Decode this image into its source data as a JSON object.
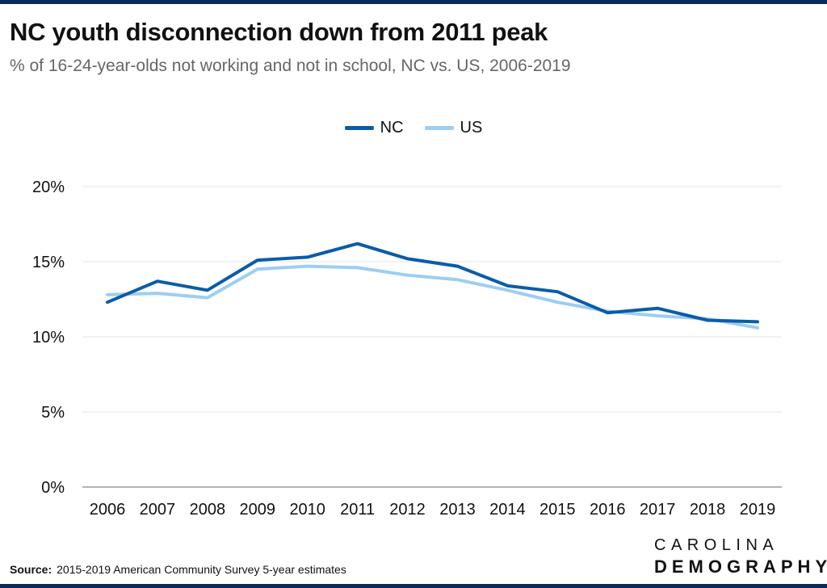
{
  "header": {
    "title": "NC youth disconnection down from 2011 peak",
    "subtitle": "% of 16-24-year-olds not working and not in school, NC vs. US, 2006-2019"
  },
  "source": {
    "label": "Source:",
    "text": "2015-2019 American Community Survey 5-year estimates"
  },
  "logo": {
    "line1": "CAROLINA",
    "line2": "DEMOGRAPHY"
  },
  "chart_data": {
    "type": "line",
    "title": "NC youth disconnection down from 2011 peak",
    "subtitle": "% of 16-24-year-olds not working and not in school, NC vs. US, 2006-2019",
    "xlabel": "",
    "ylabel": "",
    "x": [
      "2006",
      "2007",
      "2008",
      "2009",
      "2010",
      "2011",
      "2012",
      "2013",
      "2014",
      "2015",
      "2016",
      "2017",
      "2018",
      "2019"
    ],
    "ylim": [
      0,
      20
    ],
    "yticks": [
      0,
      5,
      10,
      15,
      20
    ],
    "ytick_labels": [
      "0%",
      "5%",
      "10%",
      "15%",
      "20%"
    ],
    "grid": true,
    "legend": "top-center",
    "series": [
      {
        "name": "NC",
        "color": "#0a5ca8",
        "values": [
          12.3,
          13.7,
          13.1,
          15.1,
          15.3,
          16.2,
          15.2,
          14.7,
          13.4,
          13.0,
          11.6,
          11.9,
          11.1,
          11.0
        ]
      },
      {
        "name": "US",
        "color": "#9dcdf2",
        "values": [
          12.8,
          12.9,
          12.6,
          14.5,
          14.7,
          14.6,
          14.1,
          13.8,
          13.1,
          12.3,
          11.7,
          11.4,
          11.2,
          10.6
        ]
      }
    ]
  }
}
